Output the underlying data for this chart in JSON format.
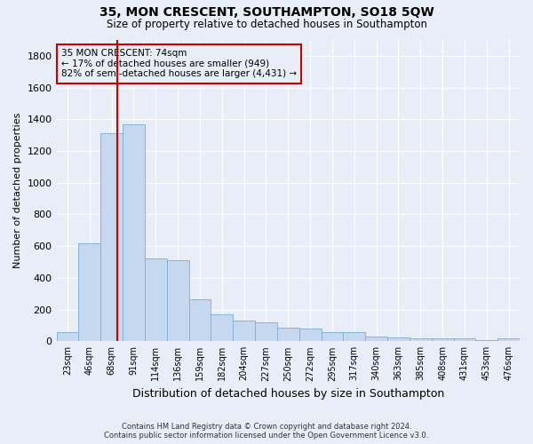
{
  "title": "35, MON CRESCENT, SOUTHAMPTON, SO18 5QW",
  "subtitle": "Size of property relative to detached houses in Southampton",
  "xlabel": "Distribution of detached houses by size in Southampton",
  "ylabel": "Number of detached properties",
  "bar_color": "#c5d8f0",
  "bar_edge_color": "#7bafd4",
  "background_color": "#e8eef8",
  "grid_color": "#ffffff",
  "annotation_box_color": "#cc0000",
  "property_line_color": "#cc0000",
  "annotation_text": "35 MON CRESCENT: 74sqm\n← 17% of detached houses are smaller (949)\n82% of semi-detached houses are larger (4,431) →",
  "footer_line1": "Contains HM Land Registry data © Crown copyright and database right 2024.",
  "footer_line2": "Contains public sector information licensed under the Open Government Licence v3.0.",
  "categories": [
    "23sqm",
    "46sqm",
    "68sqm",
    "91sqm",
    "114sqm",
    "136sqm",
    "159sqm",
    "182sqm",
    "204sqm",
    "227sqm",
    "250sqm",
    "272sqm",
    "295sqm",
    "317sqm",
    "340sqm",
    "363sqm",
    "385sqm",
    "408sqm",
    "431sqm",
    "453sqm",
    "476sqm"
  ],
  "bar_values": [
    55,
    620,
    1310,
    1370,
    520,
    510,
    265,
    170,
    130,
    120,
    85,
    80,
    55,
    55,
    30,
    25,
    18,
    18,
    18,
    5,
    18
  ],
  "ylim": [
    0,
    1900
  ],
  "yticks": [
    0,
    200,
    400,
    600,
    800,
    1000,
    1200,
    1400,
    1600,
    1800
  ],
  "figsize": [
    6.0,
    5.0
  ],
  "dpi": 100
}
